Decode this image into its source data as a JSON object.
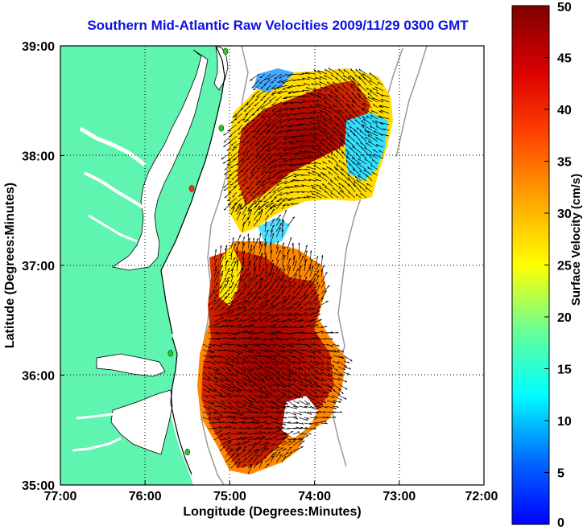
{
  "title": "Southern Mid-Atlantic Raw Velocities 2009/11/29 0300 GMT",
  "map": {
    "lon_range": [
      -77,
      -72
    ],
    "lat_range": [
      35,
      39
    ],
    "x_ticks": [
      "77:00",
      "76:00",
      "75:00",
      "74:00",
      "73:00",
      "72:00"
    ],
    "y_ticks": [
      "39:00",
      "38:00",
      "37:00",
      "36:00",
      "35:00"
    ],
    "xlabel": "Longitude (Degrees:Minutes)",
    "ylabel": "Latitude (Degrees:Minutes)",
    "land_color": "#5ff5b0",
    "grid": "dotted",
    "station_markers": [
      {
        "lon": -75.05,
        "lat": 38.95,
        "color": "#22cc22"
      },
      {
        "lon": -75.1,
        "lat": 38.25,
        "color": "#22cc22"
      },
      {
        "lon": -75.45,
        "lat": 37.7,
        "color": "#ee3322"
      },
      {
        "lon": -75.7,
        "lat": 36.2,
        "color": "#22cc22"
      },
      {
        "lon": -75.5,
        "lat": 35.3,
        "color": "#22cc22"
      }
    ]
  },
  "colorbar": {
    "label": "Surface Velocity (cm/s)",
    "min": 0,
    "max": 50,
    "ticks": [
      "0",
      "5",
      "10",
      "15",
      "20",
      "25",
      "30",
      "35",
      "40",
      "45",
      "50"
    ],
    "colormap": "jet"
  }
}
